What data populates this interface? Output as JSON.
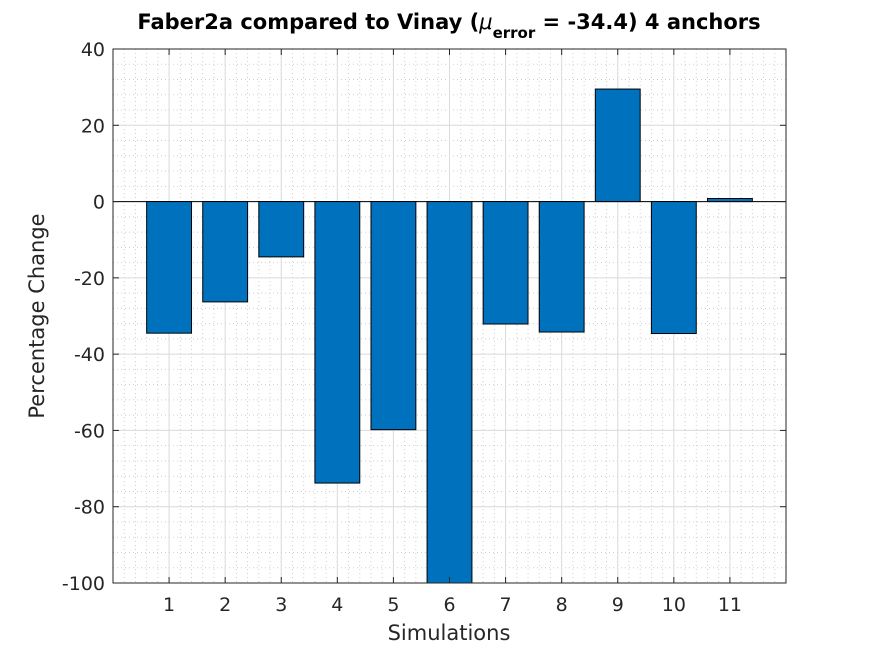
{
  "chart_data": {
    "type": "bar",
    "title_main": "Faber2a compared to Vinay (",
    "title_mu": "μ",
    "title_sub": "error",
    "title_rest": " = -34.4) 4 anchors",
    "xlabel": "Simulations",
    "ylabel": "Percentage Change",
    "categories": [
      "1",
      "2",
      "3",
      "4",
      "5",
      "6",
      "7",
      "8",
      "9",
      "10",
      "11"
    ],
    "values": [
      -34.5,
      -26.3,
      -14.5,
      -73.8,
      -59.8,
      -100,
      -32.1,
      -34.2,
      29.5,
      -34.6,
      0.8
    ],
    "xlim": [
      0,
      12
    ],
    "ylim": [
      -100,
      40
    ],
    "yticks": [
      40,
      20,
      0,
      -20,
      -40,
      -60,
      -80,
      -100
    ],
    "ytick_labels": [
      "40",
      "20",
      "0",
      "-20",
      "-40",
      "-60",
      "-80",
      "-100"
    ],
    "grid": true,
    "minor_grid": true,
    "bar_color": "#0072BD"
  }
}
